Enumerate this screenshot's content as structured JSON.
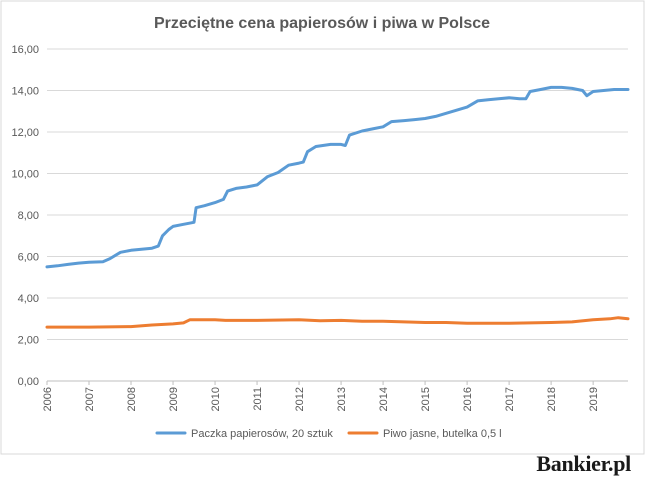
{
  "brand": "Bankier.pl",
  "chart_data": {
    "type": "line",
    "title": "Przeciętne cena papierosów i piwa w Polsce",
    "xlabel": "",
    "ylabel": "",
    "ylim": [
      0,
      16
    ],
    "yticks": [
      "0,00",
      "2,00",
      "4,00",
      "6,00",
      "8,00",
      "10,00",
      "12,00",
      "14,00",
      "16,00"
    ],
    "xticks": [
      "2006",
      "2007",
      "2008",
      "2009",
      "2010",
      "2011",
      "2012",
      "2013",
      "2014",
      "2015",
      "2016",
      "2017",
      "2018",
      "2019"
    ],
    "xlim": [
      2006,
      2019.83
    ],
    "grid": true,
    "legend": "bottom",
    "series": [
      {
        "name": "Paczka papierosów, 20 sztuk",
        "color": "#5b9bd5",
        "points": [
          [
            2006.0,
            5.5
          ],
          [
            2006.25,
            5.55
          ],
          [
            2006.5,
            5.62
          ],
          [
            2006.75,
            5.68
          ],
          [
            2007.0,
            5.72
          ],
          [
            2007.33,
            5.75
          ],
          [
            2007.5,
            5.9
          ],
          [
            2007.75,
            6.2
          ],
          [
            2008.0,
            6.3
          ],
          [
            2008.25,
            6.35
          ],
          [
            2008.5,
            6.4
          ],
          [
            2008.65,
            6.5
          ],
          [
            2008.75,
            7.0
          ],
          [
            2008.9,
            7.3
          ],
          [
            2009.0,
            7.45
          ],
          [
            2009.25,
            7.55
          ],
          [
            2009.5,
            7.65
          ],
          [
            2009.55,
            8.35
          ],
          [
            2009.75,
            8.45
          ],
          [
            2010.0,
            8.6
          ],
          [
            2010.2,
            8.75
          ],
          [
            2010.3,
            9.15
          ],
          [
            2010.5,
            9.28
          ],
          [
            2010.75,
            9.35
          ],
          [
            2011.0,
            9.45
          ],
          [
            2011.25,
            9.85
          ],
          [
            2011.5,
            10.05
          ],
          [
            2011.75,
            10.4
          ],
          [
            2012.0,
            10.5
          ],
          [
            2012.1,
            10.55
          ],
          [
            2012.2,
            11.05
          ],
          [
            2012.4,
            11.3
          ],
          [
            2012.75,
            11.4
          ],
          [
            2013.0,
            11.4
          ],
          [
            2013.1,
            11.35
          ],
          [
            2013.2,
            11.85
          ],
          [
            2013.5,
            12.05
          ],
          [
            2013.75,
            12.15
          ],
          [
            2014.0,
            12.25
          ],
          [
            2014.2,
            12.5
          ],
          [
            2014.5,
            12.55
          ],
          [
            2014.75,
            12.6
          ],
          [
            2015.0,
            12.65
          ],
          [
            2015.25,
            12.75
          ],
          [
            2015.5,
            12.9
          ],
          [
            2015.75,
            13.05
          ],
          [
            2016.0,
            13.2
          ],
          [
            2016.25,
            13.5
          ],
          [
            2016.5,
            13.55
          ],
          [
            2016.75,
            13.6
          ],
          [
            2017.0,
            13.65
          ],
          [
            2017.25,
            13.6
          ],
          [
            2017.4,
            13.6
          ],
          [
            2017.5,
            13.95
          ],
          [
            2017.75,
            14.05
          ],
          [
            2018.0,
            14.15
          ],
          [
            2018.25,
            14.15
          ],
          [
            2018.5,
            14.1
          ],
          [
            2018.75,
            14.0
          ],
          [
            2018.85,
            13.75
          ],
          [
            2019.0,
            13.95
          ],
          [
            2019.25,
            14.0
          ],
          [
            2019.5,
            14.05
          ],
          [
            2019.83,
            14.05
          ]
        ]
      },
      {
        "name": "Piwo jasne, butelka 0,5 l",
        "color": "#ed7d31",
        "points": [
          [
            2006.0,
            2.6
          ],
          [
            2007.0,
            2.6
          ],
          [
            2008.0,
            2.62
          ],
          [
            2008.5,
            2.7
          ],
          [
            2009.0,
            2.75
          ],
          [
            2009.25,
            2.8
          ],
          [
            2009.4,
            2.95
          ],
          [
            2010.0,
            2.95
          ],
          [
            2010.25,
            2.92
          ],
          [
            2011.0,
            2.92
          ],
          [
            2012.0,
            2.95
          ],
          [
            2012.5,
            2.9
          ],
          [
            2013.0,
            2.92
          ],
          [
            2013.5,
            2.88
          ],
          [
            2014.0,
            2.88
          ],
          [
            2014.5,
            2.85
          ],
          [
            2015.0,
            2.82
          ],
          [
            2015.5,
            2.82
          ],
          [
            2016.0,
            2.78
          ],
          [
            2016.5,
            2.78
          ],
          [
            2017.0,
            2.78
          ],
          [
            2017.5,
            2.8
          ],
          [
            2018.0,
            2.82
          ],
          [
            2018.5,
            2.85
          ],
          [
            2019.0,
            2.95
          ],
          [
            2019.4,
            3.0
          ],
          [
            2019.6,
            3.05
          ],
          [
            2019.83,
            3.0
          ]
        ]
      }
    ]
  }
}
